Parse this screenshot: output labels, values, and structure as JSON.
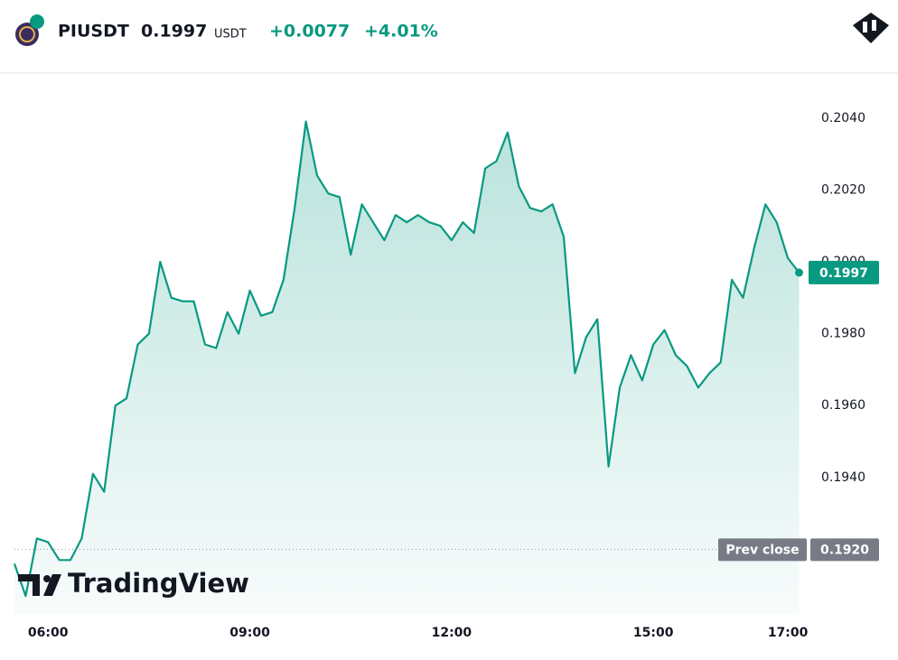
{
  "header": {
    "symbol": "PIUSDT",
    "price": "0.1997",
    "currency": "USDT",
    "change": "+0.0077",
    "change_percent": "+4.01%"
  },
  "chart_data": {
    "type": "area",
    "color": "#089981",
    "x": [
      "05:30",
      "05:40",
      "05:50",
      "06:00",
      "06:10",
      "06:20",
      "06:30",
      "06:40",
      "06:50",
      "07:00",
      "07:10",
      "07:20",
      "07:30",
      "07:40",
      "07:50",
      "08:00",
      "08:10",
      "08:20",
      "08:30",
      "08:40",
      "08:50",
      "09:00",
      "09:10",
      "09:20",
      "09:30",
      "09:40",
      "09:50",
      "10:00",
      "10:10",
      "10:20",
      "10:30",
      "10:40",
      "10:50",
      "11:00",
      "11:10",
      "11:20",
      "11:30",
      "11:40",
      "11:50",
      "12:00",
      "12:10",
      "12:20",
      "12:30",
      "12:40",
      "12:50",
      "13:00",
      "13:10",
      "13:20",
      "13:30",
      "13:40",
      "13:50",
      "14:00",
      "14:10",
      "14:20",
      "14:30",
      "14:40",
      "14:50",
      "15:00",
      "15:10",
      "15:20",
      "15:30",
      "15:40",
      "15:50",
      "16:00",
      "16:10",
      "16:20",
      "16:30",
      "16:40",
      "16:50",
      "17:00",
      "17:10"
    ],
    "values": [
      0.1916,
      0.1907,
      0.1923,
      0.1922,
      0.1917,
      0.1917,
      0.1923,
      0.1941,
      0.1936,
      0.196,
      0.1962,
      0.1977,
      0.198,
      0.2,
      0.199,
      0.1989,
      0.1989,
      0.1977,
      0.1976,
      0.1986,
      0.198,
      0.1992,
      0.1985,
      0.1986,
      0.1995,
      0.2015,
      0.2039,
      0.2024,
      0.2019,
      0.2018,
      0.2002,
      0.2016,
      0.2011,
      0.2006,
      0.2013,
      0.2011,
      0.2013,
      0.2011,
      0.201,
      0.2006,
      0.2011,
      0.2008,
      0.2026,
      0.2028,
      0.2036,
      0.2021,
      0.2015,
      0.2014,
      0.2016,
      0.2007,
      0.1969,
      0.1979,
      0.1984,
      0.1943,
      0.1965,
      0.1974,
      0.1967,
      0.1977,
      0.1981,
      0.1974,
      0.1971,
      0.1965,
      0.1969,
      0.1972,
      0.1995,
      0.199,
      0.2004,
      0.2016,
      0.2011,
      0.2001,
      0.1997
    ],
    "xlim": [
      "05:30",
      "17:12"
    ],
    "xticks": [
      "06:00",
      "09:00",
      "12:00",
      "15:00",
      "17:00"
    ],
    "ylim": [
      0.1902,
      0.2052
    ],
    "yticks": [
      {
        "value": 0.194,
        "label": "0.1940"
      },
      {
        "value": 0.196,
        "label": "0.1960"
      },
      {
        "value": 0.198,
        "label": "0.1980"
      },
      {
        "value": 0.2,
        "label": "0.2000"
      },
      {
        "value": 0.202,
        "label": "0.2020"
      },
      {
        "value": 0.204,
        "label": "0.2040"
      }
    ],
    "prev_close": {
      "label": "Prev close",
      "value": 0.192,
      "value_label": "0.1920"
    },
    "watermark": "TradingView"
  }
}
